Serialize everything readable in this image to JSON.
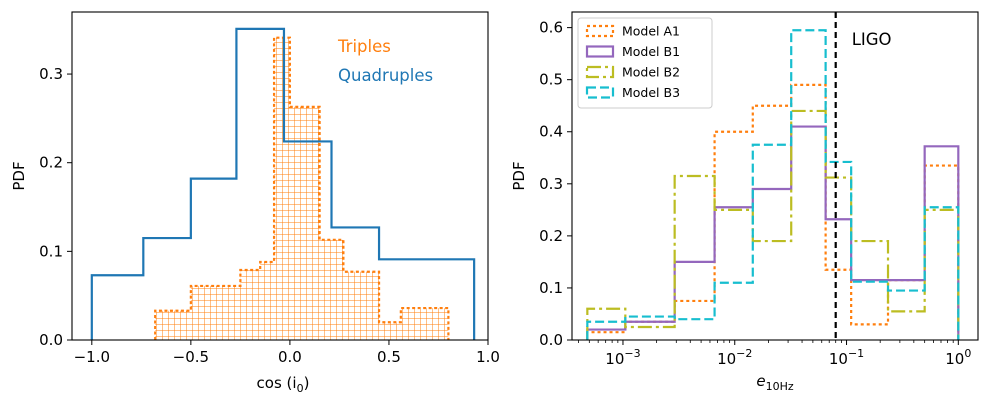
{
  "chart_data": [
    {
      "type": "histogram",
      "xlabel": "cos (i",
      "xlabel_subscript": "0",
      "xlabel_close": ")",
      "ylabel": "PDF",
      "xlim": [
        -1.1,
        1.0
      ],
      "ylim": [
        0,
        0.37
      ],
      "xticks": [
        {
          "value": -1.0,
          "label": "−1.0"
        },
        {
          "value": -0.5,
          "label": "−0.5"
        },
        {
          "value": 0.0,
          "label": "0.0"
        },
        {
          "value": 0.5,
          "label": "0.5"
        },
        {
          "value": 1.0,
          "label": "1.0"
        }
      ],
      "yticks": [
        {
          "value": 0.0,
          "label": "0.0"
        },
        {
          "value": 0.1,
          "label": "0.1"
        },
        {
          "value": 0.2,
          "label": "0.2"
        },
        {
          "value": 0.3,
          "label": "0.3"
        }
      ],
      "annotations": [
        {
          "text": "Triples",
          "color": "#ff7f0e"
        },
        {
          "text": "Quadruples",
          "color": "#1f77b4"
        }
      ],
      "series": [
        {
          "name": "Quadruples",
          "color": "#1f77b4",
          "style": "step",
          "edges": [
            -1.0,
            -0.74,
            -0.5,
            -0.27,
            -0.03,
            0.21,
            0.45,
            0.69,
            0.93
          ],
          "values": [
            0.073,
            0.115,
            0.182,
            0.351,
            0.224,
            0.127,
            0.091,
            0.091
          ]
        },
        {
          "name": "Triples",
          "color": "#ff7f0e",
          "style": "hatched-step",
          "edges": [
            -0.68,
            -0.5,
            -0.25,
            -0.15,
            -0.08,
            0.0,
            0.15,
            0.27,
            0.45,
            0.56,
            0.8
          ],
          "values": [
            0.033,
            0.061,
            0.079,
            0.088,
            0.341,
            0.263,
            0.113,
            0.077,
            0.02,
            0.036
          ]
        }
      ]
    },
    {
      "type": "histogram",
      "xscale": "log",
      "xlabel": "e",
      "xlabel_subscript": "10Hz",
      "ylabel": "PDF",
      "xlim": [
        0.00035,
        1.5
      ],
      "ylim": [
        0,
        0.63
      ],
      "xticks": [
        {
          "value": 0.001,
          "base": "10",
          "exp": "−3"
        },
        {
          "value": 0.01,
          "base": "10",
          "exp": "−2"
        },
        {
          "value": 0.1,
          "base": "10",
          "exp": "−1"
        },
        {
          "value": 1.0,
          "base": "10",
          "exp": "0"
        }
      ],
      "yticks": [
        {
          "value": 0.0,
          "label": "0.0"
        },
        {
          "value": 0.1,
          "label": "0.1"
        },
        {
          "value": 0.2,
          "label": "0.2"
        },
        {
          "value": 0.3,
          "label": "0.3"
        },
        {
          "value": 0.4,
          "label": "0.4"
        },
        {
          "value": 0.5,
          "label": "0.5"
        },
        {
          "value": 0.6,
          "label": "0.6"
        }
      ],
      "vline": {
        "x": 0.08,
        "label": "LIGO",
        "color": "#000000"
      },
      "legend_position": "top-left",
      "edges": [
        0.00048,
        0.00105,
        0.0029,
        0.0066,
        0.0145,
        0.032,
        0.065,
        0.11,
        0.235,
        0.5,
        1.0
      ],
      "series": [
        {
          "name": "Model A1",
          "color": "#ff7f0e",
          "dash": "3,3",
          "values": [
            0.015,
            0.035,
            0.075,
            0.4,
            0.45,
            0.49,
            0.135,
            0.03,
            0.115,
            0.335
          ]
        },
        {
          "name": "Model B1",
          "color": "#9467bd",
          "dash": "",
          "values": [
            0.02,
            0.035,
            0.15,
            0.255,
            0.29,
            0.41,
            0.232,
            0.115,
            0.115,
            0.372
          ]
        },
        {
          "name": "Model B2",
          "color": "#bcbd22",
          "dash": "14,4,3,4",
          "values": [
            0.06,
            0.025,
            0.315,
            0.25,
            0.19,
            0.44,
            0.312,
            0.19,
            0.055,
            0.25
          ]
        },
        {
          "name": "Model B3",
          "color": "#17becf",
          "dash": "9,4",
          "values": [
            0.035,
            0.045,
            0.04,
            0.11,
            0.375,
            0.595,
            0.342,
            0.112,
            0.095,
            0.255
          ]
        }
      ]
    }
  ]
}
